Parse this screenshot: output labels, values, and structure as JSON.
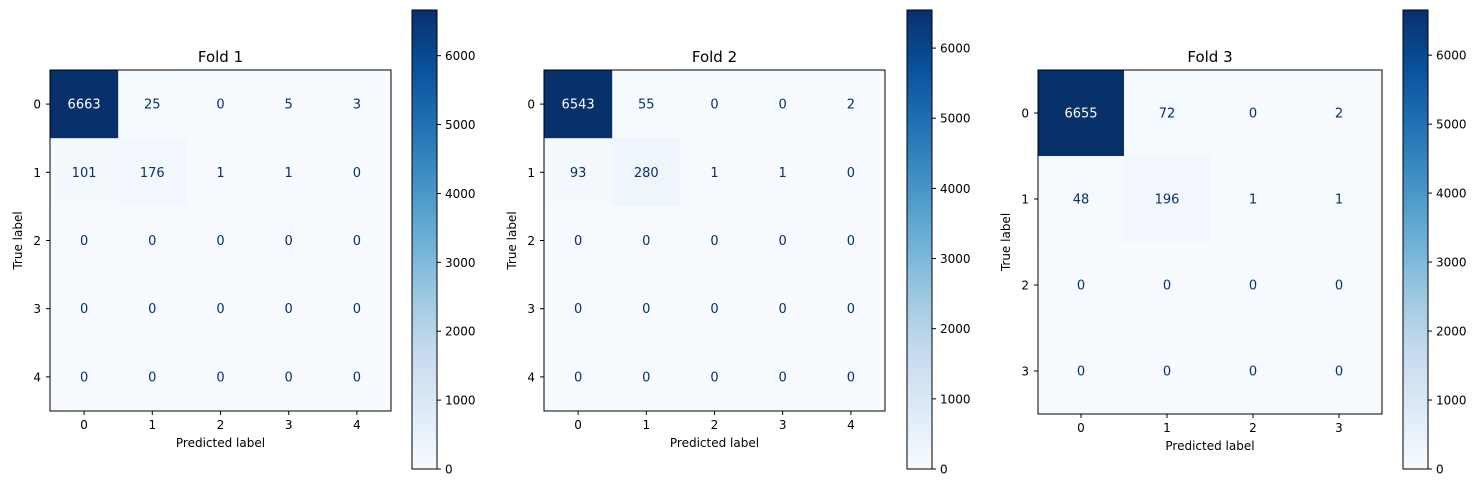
{
  "chart_data": [
    {
      "type": "heatmap",
      "title": "Fold 1",
      "xlabel": "Predicted label",
      "ylabel": "True label",
      "x_ticks": [
        "0",
        "1",
        "2",
        "3",
        "4"
      ],
      "y_ticks": [
        "0",
        "1",
        "2",
        "3",
        "4"
      ],
      "values": [
        [
          6663,
          25,
          0,
          5,
          3
        ],
        [
          101,
          176,
          1,
          1,
          0
        ],
        [
          0,
          0,
          0,
          0,
          0
        ],
        [
          0,
          0,
          0,
          0,
          0
        ],
        [
          0,
          0,
          0,
          0,
          0
        ]
      ],
      "colormap": "Blues",
      "colorbar_range": [
        0,
        6663
      ],
      "colorbar_ticks": [
        "0",
        "1000",
        "2000",
        "3000",
        "4000",
        "5000",
        "6000"
      ]
    },
    {
      "type": "heatmap",
      "title": "Fold 2",
      "xlabel": "Predicted label",
      "ylabel": "True label",
      "x_ticks": [
        "0",
        "1",
        "2",
        "3",
        "4"
      ],
      "y_ticks": [
        "0",
        "1",
        "2",
        "3",
        "4"
      ],
      "values": [
        [
          6543,
          55,
          0,
          0,
          2
        ],
        [
          93,
          280,
          1,
          1,
          0
        ],
        [
          0,
          0,
          0,
          0,
          0
        ],
        [
          0,
          0,
          0,
          0,
          0
        ],
        [
          0,
          0,
          0,
          0,
          0
        ]
      ],
      "colormap": "Blues",
      "colorbar_range": [
        0,
        6543
      ],
      "colorbar_ticks": [
        "0",
        "1000",
        "2000",
        "3000",
        "4000",
        "5000",
        "6000"
      ]
    },
    {
      "type": "heatmap",
      "title": "Fold 3",
      "xlabel": "Predicted label",
      "ylabel": "True label",
      "x_ticks": [
        "0",
        "1",
        "2",
        "3"
      ],
      "y_ticks": [
        "0",
        "1",
        "2",
        "3"
      ],
      "values": [
        [
          6655,
          72,
          0,
          2
        ],
        [
          48,
          196,
          1,
          1
        ],
        [
          0,
          0,
          0,
          0
        ],
        [
          0,
          0,
          0,
          0
        ]
      ],
      "colormap": "Blues",
      "colorbar_range": [
        0,
        6655
      ],
      "colorbar_ticks": [
        "0",
        "1000",
        "2000",
        "3000",
        "4000",
        "5000",
        "6000"
      ]
    }
  ],
  "colors": {
    "cmap_low": "#f7fbff",
    "cmap_high": "#08306b",
    "text_dark": "#08306b",
    "text_light": "#ffffff"
  }
}
